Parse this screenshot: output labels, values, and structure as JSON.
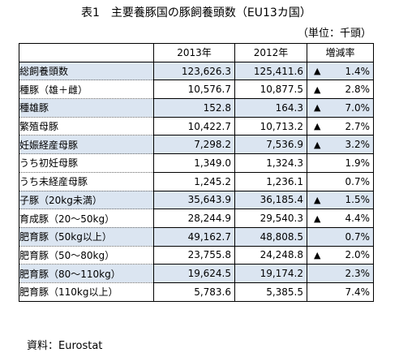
{
  "title": "表1　主要養豚国の豚飼養頭数（EU13カ国）",
  "unit": "（単位：千頭）",
  "headers": [
    "",
    "2013年",
    "2012年",
    "増減率"
  ],
  "rows": [
    {
      "label": "総飼養頭数",
      "v2013": "123,626.3",
      "v2012": "125,411.6",
      "tri": "▲",
      "rate": "1.4%"
    },
    {
      "label": "種豚（雄＋雌）",
      "v2013": "10,576.7",
      "v2012": "10,877.5",
      "tri": "▲",
      "rate": "2.8%"
    },
    {
      "label": "種雄豚",
      "v2013": "152.8",
      "v2012": "164.3",
      "tri": "▲",
      "rate": "7.0%"
    },
    {
      "label": "繁殖母豚",
      "v2013": "10,422.7",
      "v2012": "10,713.2",
      "tri": "▲",
      "rate": "2.7%"
    },
    {
      "label": "妊娠経産母豚",
      "v2013": "7,298.2",
      "v2012": "7,536.9",
      "tri": "▲",
      "rate": "3.2%"
    },
    {
      "label": "うち初妊母豚",
      "v2013": "1,349.0",
      "v2012": "1,324.3",
      "tri": "",
      "rate": "1.9%"
    },
    {
      "label": "うち未経産母豚",
      "v2013": "1,245.2",
      "v2012": "1,236.1",
      "tri": "",
      "rate": "0.7%"
    },
    {
      "label": "子豚（20kg未満）",
      "v2013": "35,643.9",
      "v2012": "36,185.4",
      "tri": "▲",
      "rate": "1.5%"
    },
    {
      "label": "育成豚（20～50kg）",
      "v2013": "28,244.9",
      "v2012": "29,540.3",
      "tri": "▲",
      "rate": "4.4%"
    },
    {
      "label": "肥育豚（50kg以上）",
      "v2013": "49,162.7",
      "v2012": "48,808.5",
      "tri": "",
      "rate": "0.7%"
    },
    {
      "label": "肥育豚（50～80kg）",
      "v2013": "23,755.8",
      "v2012": "24,248.8",
      "tri": "▲",
      "rate": "2.0%"
    },
    {
      "label": "肥育豚（80～110kg）",
      "v2013": "19,624.5",
      "v2012": "19,174.2",
      "tri": "",
      "rate": "2.3%"
    },
    {
      "label": "肥育豚（110kg以上）",
      "v2013": "5,783.6",
      "v2012": "5,385.5",
      "tri": "",
      "rate": "7.4%"
    }
  ],
  "source": "資料：Eurostat",
  "colors": {
    "shade": "#dbe5f1"
  }
}
